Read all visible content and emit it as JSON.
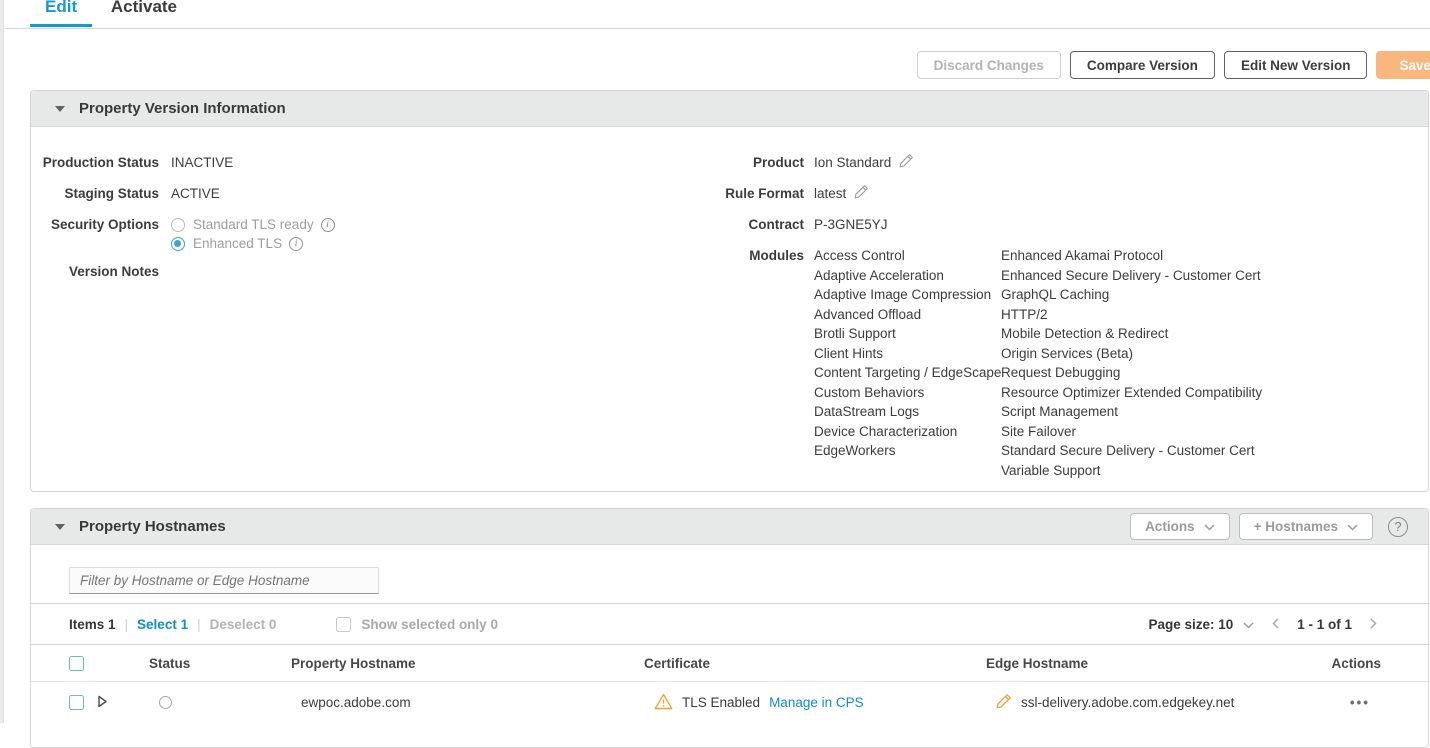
{
  "colors": {
    "accent_blue": "#1499d3",
    "link_blue": "#0d8ecf",
    "save_orange": "#f9b77d",
    "warning_orange": "#f0a63c",
    "header_gray": "#e7e9e9"
  },
  "tabs": {
    "edit": "Edit",
    "activate": "Activate"
  },
  "toolbar": {
    "discard_label": "Discard Changes",
    "compare_label": "Compare Version",
    "edit_new_label": "Edit New Version",
    "save_label": "Save"
  },
  "version_info": {
    "title": "Property Version Information",
    "production_status_label": "Production Status",
    "production_status": "INACTIVE",
    "staging_status_label": "Staging Status",
    "staging_status": "ACTIVE",
    "security_options_label": "Security Options",
    "security_option_standard": "Standard TLS ready",
    "security_option_enhanced": "Enhanced TLS",
    "version_notes_label": "Version Notes",
    "product_label": "Product",
    "product": "Ion Standard",
    "rule_format_label": "Rule Format",
    "rule_format": "latest",
    "contract_label": "Contract",
    "contract": "P-3GNE5YJ",
    "modules_label": "Modules",
    "modules_col1": [
      "Access Control",
      "Adaptive Acceleration",
      "Adaptive Image Compression",
      "Advanced Offload",
      "Brotli Support",
      "Client Hints",
      "Content Targeting / EdgeScape",
      "Custom Behaviors",
      "DataStream Logs",
      "Device Characterization",
      "EdgeWorkers"
    ],
    "modules_col2": [
      "Enhanced Akamai Protocol",
      "Enhanced Secure Delivery - Customer Cert",
      "GraphQL Caching",
      "HTTP/2",
      "Mobile Detection & Redirect",
      "Origin Services (Beta)",
      "Request Debugging",
      "Resource Optimizer Extended Compatibility",
      "Script Management",
      "Site Failover",
      "Standard Secure Delivery - Customer Cert",
      "Variable Support"
    ]
  },
  "hostnames": {
    "title": "Property Hostnames",
    "actions_button": "Actions",
    "add_hostnames_button": "+ Hostnames",
    "filter_placeholder": "Filter by Hostname or Edge Hostname",
    "items_label": "Items 1",
    "select_label": "Select 1",
    "deselect_label": "Deselect 0",
    "show_selected_label": "Show selected only 0",
    "separator": "|",
    "page_size_label": "Page size: 10",
    "page_range": "1 - 1 of 1",
    "columns": [
      "Status",
      "Property Hostname",
      "Certificate",
      "Edge Hostname",
      "Actions"
    ],
    "row": {
      "hostname": "ewpoc.adobe.com",
      "certificate_status": "TLS Enabled",
      "certificate_link": "Manage in CPS",
      "edge_hostname": "ssl-delivery.adobe.com.edgekey.net"
    }
  },
  "icons": {
    "overflow_menu": "•••"
  }
}
